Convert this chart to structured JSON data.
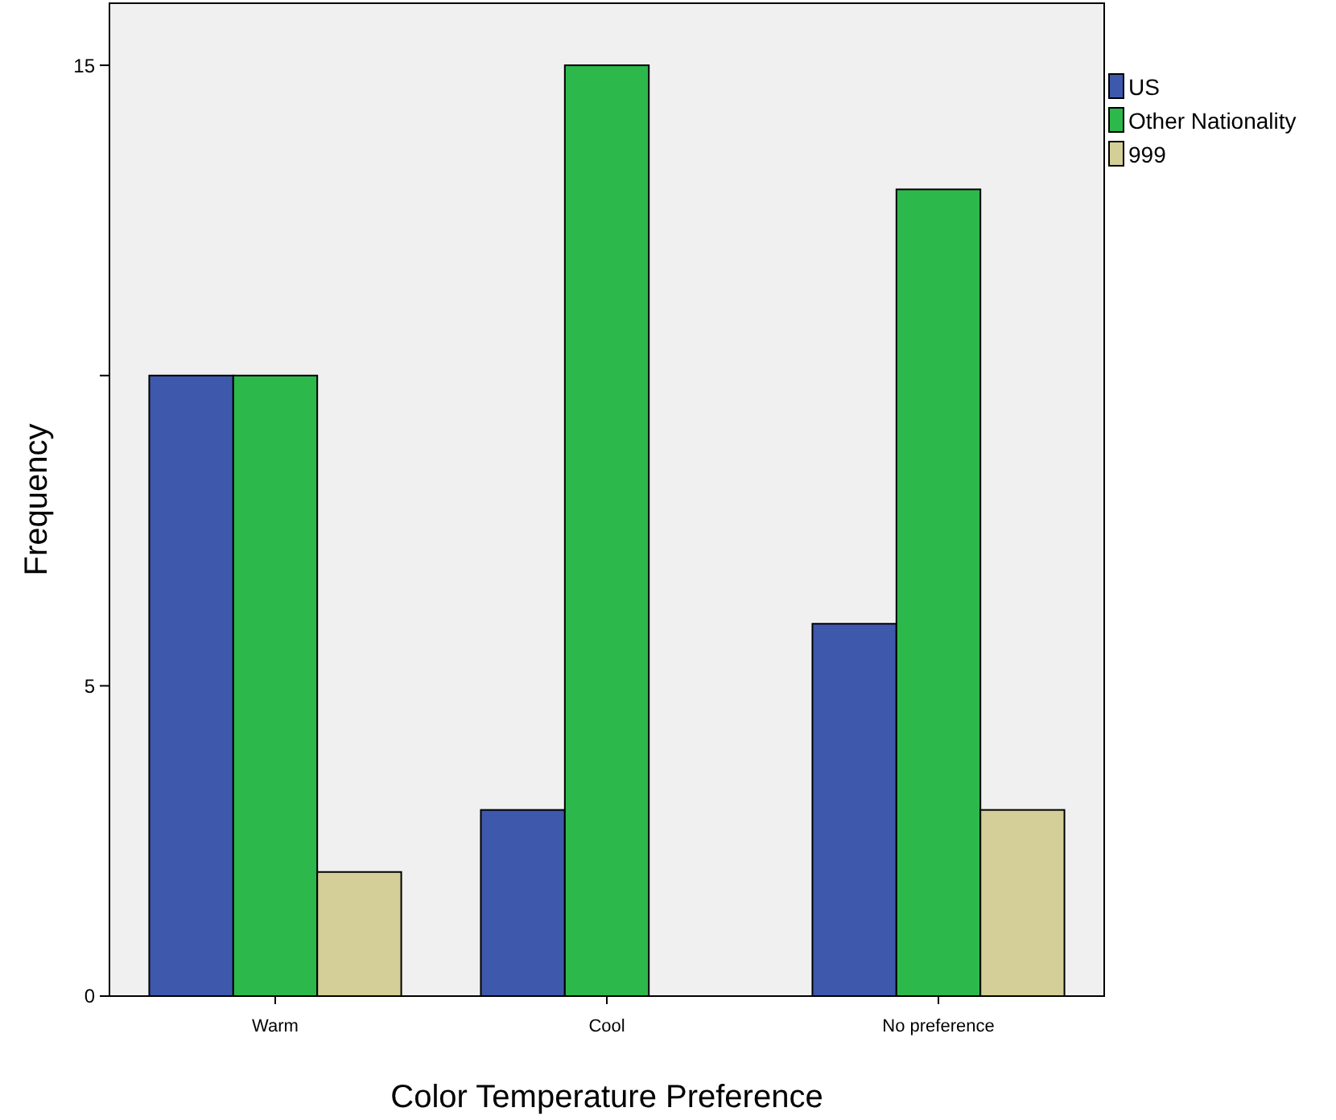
{
  "chart_data": {
    "type": "bar",
    "xlabel": "Color Temperature Preference",
    "ylabel": "Frequency",
    "categories": [
      "Warm",
      "Cool",
      "No preference"
    ],
    "series": [
      {
        "name": "US",
        "color": "#3e58ac",
        "values": [
          10,
          3,
          6
        ]
      },
      {
        "name": "Other Nationality",
        "color": "#2db84b",
        "values": [
          10,
          15,
          13
        ]
      },
      {
        "name": "999",
        "color": "#d4cf98",
        "values": [
          2,
          0,
          3
        ]
      }
    ],
    "ylim": [
      0,
      16
    ],
    "yticks": [
      0,
      5,
      {
        "value": 10,
        "label": null
      },
      15
    ],
    "grid": false,
    "legend": "top right"
  }
}
